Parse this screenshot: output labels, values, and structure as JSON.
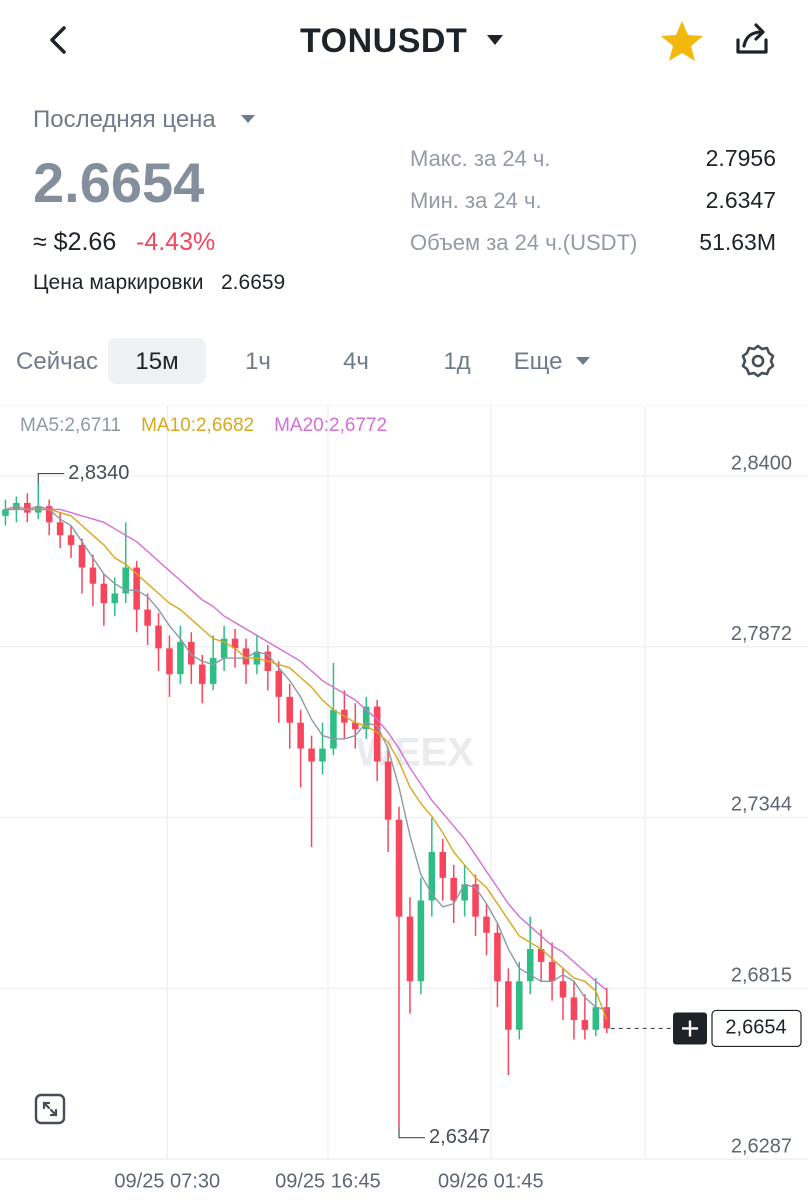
{
  "header": {
    "title": "TONUSDT"
  },
  "ticker": {
    "label": "Последняя цена",
    "last": "2.6654",
    "usd": "≈ $2.66",
    "change": "-4.43%",
    "mark_label": "Цена маркировки",
    "mark_value": "2.6659",
    "stats": [
      [
        "Макс. за 24 ч.",
        "2.7956"
      ],
      [
        "Мин. за 24 ч.",
        "2.6347"
      ],
      [
        "Объем за 24 ч.(USDT)",
        "51.63M"
      ]
    ]
  },
  "tabs": [
    "Сейчас",
    "15м",
    "1ч",
    "4ч",
    "1д",
    "Еще"
  ],
  "chart_data": {
    "type": "candlestick",
    "watermark": "WEEX",
    "up_color": "#2ebd85",
    "down_color": "#f6465d",
    "grid": true,
    "ylim": [
      2.6247,
      2.8583
    ],
    "yticks": [
      {
        "value": 2.84,
        "label": "2,8400"
      },
      {
        "value": 2.7872,
        "label": "2,7872"
      },
      {
        "value": 2.7344,
        "label": "2,7344"
      },
      {
        "value": 2.6815,
        "label": "2,6815"
      },
      {
        "value": 2.6287,
        "label": "2,6287"
      }
    ],
    "xlim": [
      -0.5,
      58.5
    ],
    "xticks": [
      {
        "value": 14.8,
        "label": "09/25 07:30"
      },
      {
        "value": 29.5,
        "label": "09/25 16:45"
      },
      {
        "value": 44.4,
        "label": "09/26 01:45"
      }
    ],
    "candles": [
      [
        2.824,
        2.829,
        2.821,
        2.826
      ],
      [
        2.826,
        2.83,
        2.822,
        2.828
      ],
      [
        2.828,
        2.831,
        2.822,
        2.825
      ],
      [
        2.825,
        2.834,
        2.823,
        2.827
      ],
      [
        2.827,
        2.829,
        2.818,
        2.822
      ],
      [
        2.822,
        2.825,
        2.814,
        2.818
      ],
      [
        2.818,
        2.821,
        2.811,
        2.815
      ],
      [
        2.815,
        2.817,
        2.8,
        2.808
      ],
      [
        2.808,
        2.812,
        2.796,
        2.803
      ],
      [
        2.803,
        2.806,
        2.79,
        2.797
      ],
      [
        2.797,
        2.805,
        2.793,
        2.8
      ],
      [
        2.8,
        2.822,
        2.797,
        2.808
      ],
      [
        2.808,
        2.81,
        2.788,
        2.795
      ],
      [
        2.795,
        2.8,
        2.784,
        2.79
      ],
      [
        2.79,
        2.794,
        2.776,
        2.783
      ],
      [
        2.783,
        2.787,
        2.768,
        2.775
      ],
      [
        2.775,
        2.79,
        2.772,
        2.785
      ],
      [
        2.785,
        2.788,
        2.772,
        2.778
      ],
      [
        2.778,
        2.781,
        2.766,
        2.772
      ],
      [
        2.772,
        2.787,
        2.77,
        2.78
      ],
      [
        2.78,
        2.79,
        2.776,
        2.786
      ],
      [
        2.786,
        2.789,
        2.777,
        2.783
      ],
      [
        2.783,
        2.786,
        2.772,
        2.778
      ],
      [
        2.778,
        2.787,
        2.775,
        2.782
      ],
      [
        2.782,
        2.784,
        2.77,
        2.776
      ],
      [
        2.776,
        2.779,
        2.76,
        2.768
      ],
      [
        2.768,
        2.772,
        2.752,
        2.76
      ],
      [
        2.76,
        2.764,
        2.74,
        2.752
      ],
      [
        2.752,
        2.756,
        2.7215,
        2.748
      ],
      [
        2.748,
        2.76,
        2.744,
        2.752
      ],
      [
        2.752,
        2.7785,
        2.75,
        2.764
      ],
      [
        2.764,
        2.77,
        2.755,
        2.76
      ],
      [
        2.76,
        2.766,
        2.752,
        2.758
      ],
      [
        2.758,
        2.768,
        2.755,
        2.765
      ],
      [
        2.765,
        2.767,
        2.742,
        2.748
      ],
      [
        2.748,
        2.752,
        2.72,
        2.73
      ],
      [
        2.73,
        2.734,
        2.6347,
        2.7
      ],
      [
        2.7,
        2.706,
        2.67,
        2.68
      ],
      [
        2.68,
        2.712,
        2.676,
        2.705
      ],
      [
        2.705,
        2.7305,
        2.7,
        2.72
      ],
      [
        2.72,
        2.724,
        2.705,
        2.712
      ],
      [
        2.712,
        2.716,
        2.698,
        2.705
      ],
      [
        2.705,
        2.716,
        2.7,
        2.71
      ],
      [
        2.71,
        2.713,
        2.694,
        2.7
      ],
      [
        2.7,
        2.704,
        2.688,
        2.695
      ],
      [
        2.695,
        2.698,
        2.672,
        2.68
      ],
      [
        2.68,
        2.684,
        2.651,
        2.665
      ],
      [
        2.665,
        2.686,
        2.662,
        2.68
      ],
      [
        2.68,
        2.7,
        2.676,
        2.69
      ],
      [
        2.69,
        2.696,
        2.68,
        2.686
      ],
      [
        2.686,
        2.692,
        2.674,
        2.68
      ],
      [
        2.68,
        2.684,
        2.668,
        2.675
      ],
      [
        2.675,
        2.68,
        2.662,
        2.668
      ],
      [
        2.668,
        2.676,
        2.662,
        2.665
      ],
      [
        2.665,
        2.681,
        2.663,
        2.672
      ],
      [
        2.672,
        2.678,
        2.664,
        2.6654
      ]
    ],
    "series": [
      {
        "name": "MA5:2,6711",
        "color": "#8d9aa6",
        "values": [
          2.826,
          2.827,
          2.826,
          2.827,
          2.826,
          2.823,
          2.821,
          2.816,
          2.811,
          2.806,
          2.803,
          2.801,
          2.801,
          2.799,
          2.795,
          2.79,
          2.786,
          2.781,
          2.779,
          2.778,
          2.78,
          2.78,
          2.78,
          2.782,
          2.781,
          2.777,
          2.773,
          2.768,
          2.761,
          2.756,
          2.755,
          2.755,
          2.756,
          2.76,
          2.759,
          2.752,
          2.74,
          2.725,
          2.713,
          2.707,
          2.703,
          2.704,
          2.71,
          2.709,
          2.704,
          2.698,
          2.69,
          2.684,
          2.682,
          2.68,
          2.68,
          2.682,
          2.68,
          2.675,
          2.672,
          2.6711
        ]
      },
      {
        "name": "MA10:2,6682",
        "color": "#d9a81e",
        "values": [
          2.826,
          2.826,
          2.826,
          2.826,
          2.826,
          2.825,
          2.824,
          2.821,
          2.818,
          2.815,
          2.811,
          2.809,
          2.806,
          2.803,
          2.8,
          2.797,
          2.795,
          2.792,
          2.789,
          2.786,
          2.785,
          2.783,
          2.78,
          2.78,
          2.779,
          2.778,
          2.777,
          2.774,
          2.771,
          2.767,
          2.764,
          2.762,
          2.76,
          2.759,
          2.757,
          2.754,
          2.748,
          2.74,
          2.735,
          2.731,
          2.726,
          2.72,
          2.716,
          2.712,
          2.709,
          2.704,
          2.699,
          2.694,
          2.692,
          2.69,
          2.687,
          2.684,
          2.681,
          2.68,
          2.677,
          2.6682
        ]
      },
      {
        "name": "MA20:2,6772",
        "color": "#d46fd6",
        "values": [
          2.826,
          2.826,
          2.826,
          2.826,
          2.826,
          2.826,
          2.825,
          2.824,
          2.823,
          2.822,
          2.82,
          2.818,
          2.816,
          2.813,
          2.81,
          2.807,
          2.804,
          2.801,
          2.798,
          2.796,
          2.793,
          2.791,
          2.789,
          2.787,
          2.785,
          2.783,
          2.781,
          2.779,
          2.776,
          2.773,
          2.771,
          2.769,
          2.767,
          2.764,
          2.761,
          2.757,
          2.752,
          2.746,
          2.741,
          2.736,
          2.732,
          2.728,
          2.724,
          2.719,
          2.714,
          2.709,
          2.704,
          2.7,
          2.697,
          2.694,
          2.691,
          2.689,
          2.686,
          2.683,
          2.68,
          2.6772
        ]
      }
    ],
    "annotations": [
      {
        "value": 2.834,
        "label": "2,8340"
      },
      {
        "value": 2.6347,
        "label": "2,6347"
      }
    ],
    "last_price": {
      "value": 2.6654,
      "label": "2,6654"
    }
  }
}
